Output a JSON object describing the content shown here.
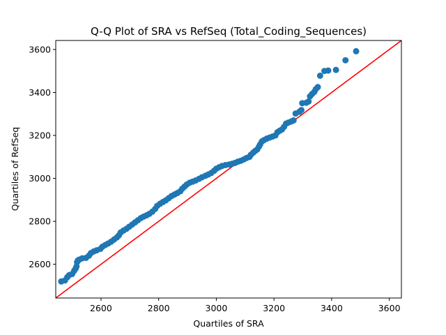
{
  "chart_data": {
    "type": "scatter",
    "title": "Q-Q Plot of SRA vs RefSeq (Total_Coding_Sequences)",
    "xlabel": "Quartiles of SRA",
    "ylabel": "Quartiles of RefSeq",
    "xlim": [
      2443,
      3642
    ],
    "ylim": [
      2443,
      3642
    ],
    "xticks": [
      2600,
      2800,
      3000,
      3200,
      3400,
      3600
    ],
    "yticks": [
      2600,
      2800,
      3000,
      3200,
      3400,
      3600
    ],
    "xtick_labels": [
      "2600",
      "2800",
      "3000",
      "3200",
      "3400",
      "3600"
    ],
    "ytick_labels": [
      "2600",
      "2800",
      "3000",
      "3200",
      "3400",
      "3600"
    ],
    "grid": false,
    "marker_color": "#1f77b4",
    "reference_line": {
      "color": "#ff0000",
      "slope": 1,
      "intercept": 0
    },
    "points": [
      [
        2462,
        2520
      ],
      [
        2475,
        2525
      ],
      [
        2483,
        2540
      ],
      [
        2490,
        2550
      ],
      [
        2500,
        2555
      ],
      [
        2507,
        2570
      ],
      [
        2512,
        2580
      ],
      [
        2515,
        2590
      ],
      [
        2517,
        2610
      ],
      [
        2520,
        2618
      ],
      [
        2525,
        2622
      ],
      [
        2535,
        2628
      ],
      [
        2548,
        2630
      ],
      [
        2558,
        2640
      ],
      [
        2565,
        2652
      ],
      [
        2575,
        2660
      ],
      [
        2585,
        2665
      ],
      [
        2598,
        2672
      ],
      [
        2605,
        2682
      ],
      [
        2615,
        2690
      ],
      [
        2625,
        2697
      ],
      [
        2635,
        2705
      ],
      [
        2645,
        2715
      ],
      [
        2655,
        2725
      ],
      [
        2662,
        2735
      ],
      [
        2668,
        2748
      ],
      [
        2678,
        2757
      ],
      [
        2688,
        2765
      ],
      [
        2698,
        2775
      ],
      [
        2708,
        2785
      ],
      [
        2718,
        2795
      ],
      [
        2728,
        2805
      ],
      [
        2738,
        2815
      ],
      [
        2748,
        2822
      ],
      [
        2758,
        2828
      ],
      [
        2768,
        2835
      ],
      [
        2778,
        2845
      ],
      [
        2788,
        2858
      ],
      [
        2795,
        2872
      ],
      [
        2805,
        2882
      ],
      [
        2815,
        2890
      ],
      [
        2825,
        2898
      ],
      [
        2835,
        2908
      ],
      [
        2845,
        2918
      ],
      [
        2855,
        2925
      ],
      [
        2865,
        2932
      ],
      [
        2875,
        2940
      ],
      [
        2882,
        2952
      ],
      [
        2890,
        2962
      ],
      [
        2898,
        2972
      ],
      [
        2908,
        2980
      ],
      [
        2918,
        2985
      ],
      [
        2928,
        2990
      ],
      [
        2940,
        2998
      ],
      [
        2950,
        3005
      ],
      [
        2962,
        3012
      ],
      [
        2972,
        3018
      ],
      [
        2982,
        3025
      ],
      [
        2992,
        3035
      ],
      [
        3000,
        3045
      ],
      [
        3010,
        3052
      ],
      [
        3020,
        3058
      ],
      [
        3032,
        3062
      ],
      [
        3045,
        3065
      ],
      [
        3055,
        3068
      ],
      [
        3065,
        3072
      ],
      [
        3075,
        3078
      ],
      [
        3085,
        3082
      ],
      [
        3095,
        3088
      ],
      [
        3105,
        3095
      ],
      [
        3115,
        3100
      ],
      [
        3120,
        3110
      ],
      [
        3128,
        3120
      ],
      [
        3135,
        3128
      ],
      [
        3142,
        3135
      ],
      [
        3148,
        3148
      ],
      [
        3152,
        3158
      ],
      [
        3158,
        3172
      ],
      [
        3165,
        3178
      ],
      [
        3175,
        3185
      ],
      [
        3185,
        3190
      ],
      [
        3195,
        3195
      ],
      [
        3205,
        3200
      ],
      [
        3212,
        3215
      ],
      [
        3220,
        3222
      ],
      [
        3228,
        3228
      ],
      [
        3235,
        3240
      ],
      [
        3242,
        3255
      ],
      [
        3250,
        3260
      ],
      [
        3260,
        3265
      ],
      [
        3268,
        3270
      ],
      [
        3275,
        3302
      ],
      [
        3288,
        3310
      ],
      [
        3295,
        3318
      ],
      [
        3298,
        3350
      ],
      [
        3312,
        3352
      ],
      [
        3320,
        3358
      ],
      [
        3325,
        3382
      ],
      [
        3332,
        3393
      ],
      [
        3340,
        3403
      ],
      [
        3345,
        3415
      ],
      [
        3352,
        3425
      ],
      [
        3360,
        3478
      ],
      [
        3375,
        3500
      ],
      [
        3388,
        3502
      ],
      [
        3415,
        3505
      ],
      [
        3448,
        3550
      ],
      [
        3485,
        3592
      ]
    ]
  }
}
